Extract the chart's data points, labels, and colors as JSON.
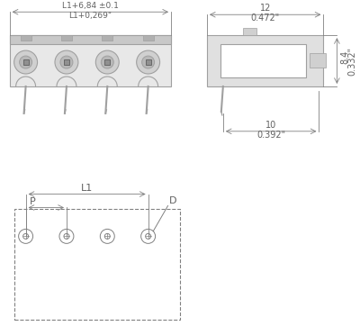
{
  "bg_color": "#ffffff",
  "line_color": "#a0a0a0",
  "dark_line": "#505050",
  "dim_color": "#808080",
  "text_color": "#606060",
  "fig_width": 4.0,
  "fig_height": 3.72,
  "dpi": 100,
  "top_label1": "L1+6,84 ±0.1",
  "top_label2": "L1+0,269\"",
  "right_width_label": "12",
  "right_width_label2": "0.472\"",
  "right_height_label": "8.4",
  "right_height_label2": "0.332\"",
  "right_bottom_label": "10",
  "right_bottom_label2": "0.392\"",
  "bottom_L1_label": "L1",
  "bottom_P_label": "P",
  "bottom_D_label": "D"
}
